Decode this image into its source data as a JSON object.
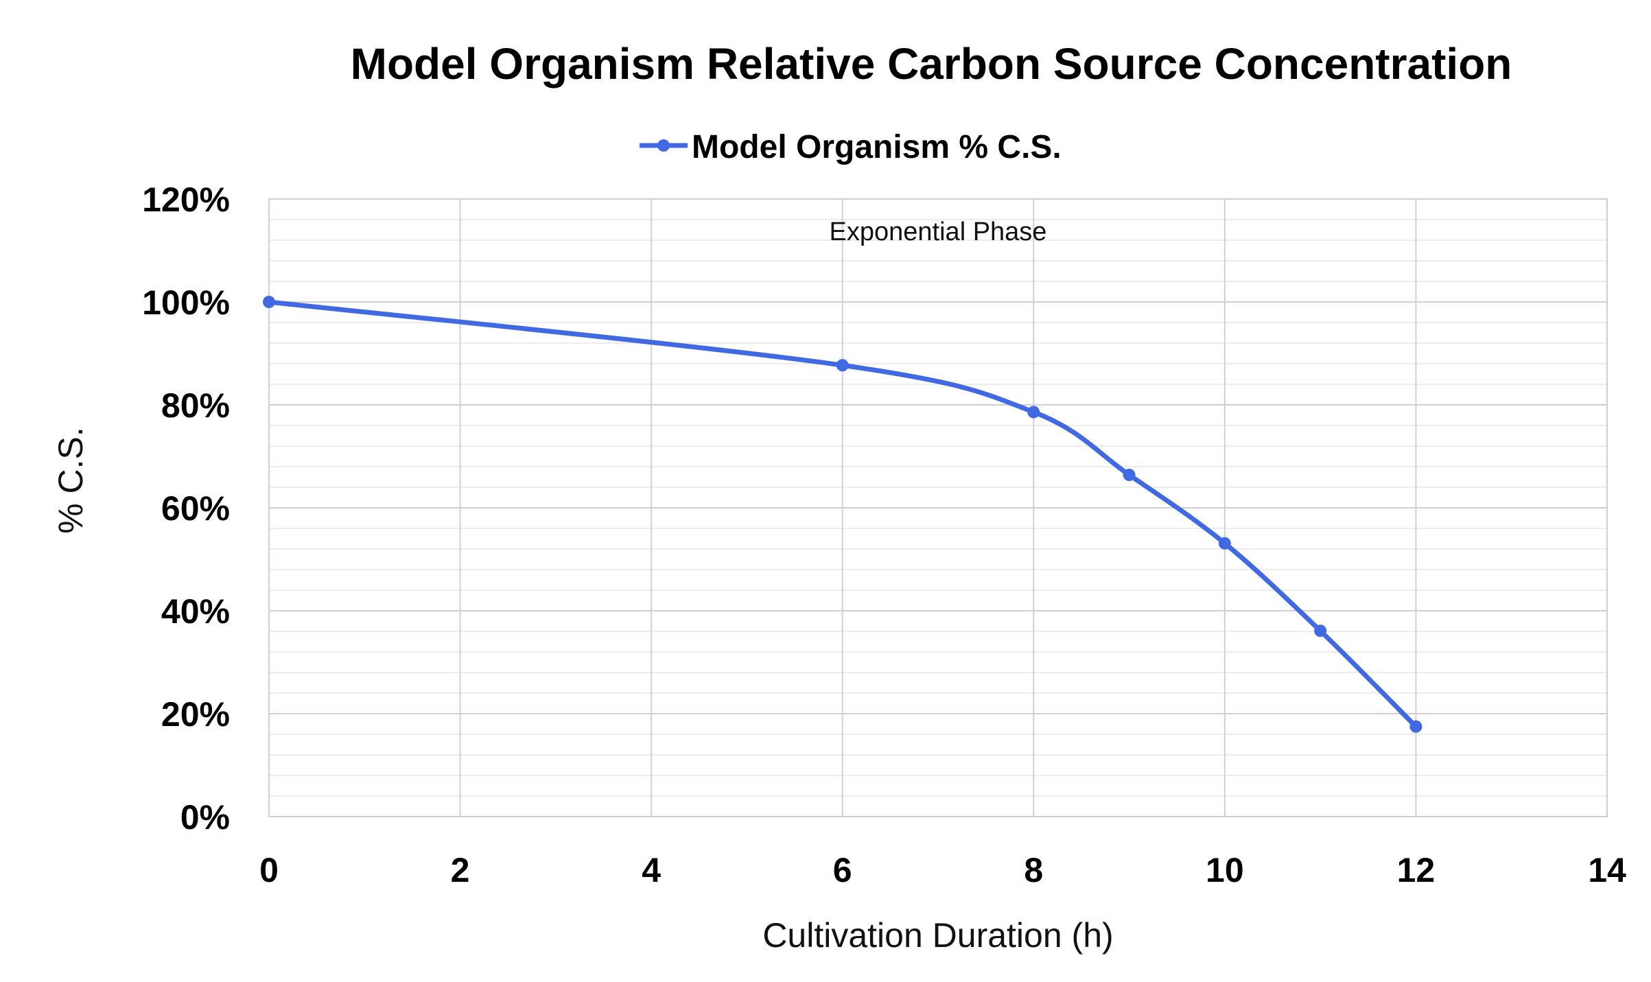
{
  "chart_data": {
    "type": "line",
    "title": "Model Organism Relative Carbon Source Concentration",
    "xlabel": "Cultivation Duration (h)",
    "ylabel": "% C.S.",
    "xlim": [
      0,
      14
    ],
    "ylim": [
      0,
      120
    ],
    "x_ticks": [
      "0",
      "2",
      "4",
      "6",
      "8",
      "10",
      "12",
      "14"
    ],
    "y_ticks": [
      "0%",
      "20%",
      "40%",
      "60%",
      "80%",
      "100%",
      "120%"
    ],
    "grid": true,
    "smooth": true,
    "legend_position": "top",
    "annotation": "Exponential Phase",
    "series": [
      {
        "name": "Model Organism % C.S.",
        "color": "#4169e1",
        "x": [
          0,
          6,
          8,
          9,
          10,
          11,
          12
        ],
        "y": [
          100,
          87.7,
          78.6,
          66.4,
          53.1,
          36.1,
          17.5
        ]
      }
    ]
  }
}
